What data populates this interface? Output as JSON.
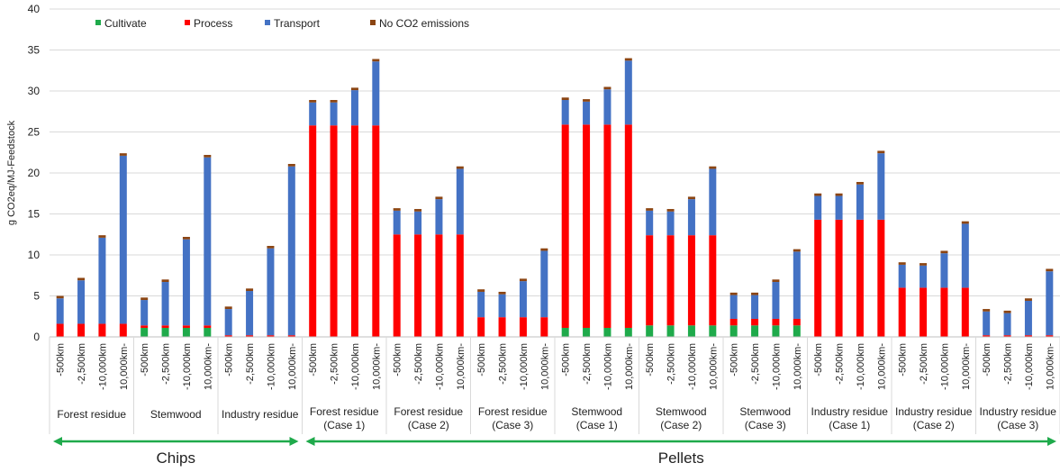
{
  "chart_data": {
    "type": "bar",
    "stacked": true,
    "ylabel": "g CO2eq/MJ-Feedstock",
    "ylim": [
      0,
      40
    ],
    "yticks": [
      0,
      5,
      10,
      15,
      20,
      25,
      30,
      35,
      40
    ],
    "grid": true,
    "legend_position": "top-left",
    "categories": [
      "-500km",
      "-2,500km",
      "-10,000km",
      "10,000km-"
    ],
    "groups": [
      {
        "label_line1": "Forest residue",
        "label_line2": ""
      },
      {
        "label_line1": "Stemwood",
        "label_line2": ""
      },
      {
        "label_line1": "Industry residue",
        "label_line2": ""
      },
      {
        "label_line1": "Forest residue",
        "label_line2": "(Case 1)"
      },
      {
        "label_line1": "Forest residue",
        "label_line2": "(Case 2)"
      },
      {
        "label_line1": "Forest residue",
        "label_line2": "(Case 3)"
      },
      {
        "label_line1": "Stemwood",
        "label_line2": "(Case 1)"
      },
      {
        "label_line1": "Stemwood",
        "label_line2": "(Case 2)"
      },
      {
        "label_line1": "Stemwood",
        "label_line2": "(Case 3)"
      },
      {
        "label_line1": "Industry residue",
        "label_line2": "(Case 1)"
      },
      {
        "label_line1": "Industry residue",
        "label_line2": "(Case 2)"
      },
      {
        "label_line1": "Industry residue",
        "label_line2": "(Case 3)"
      }
    ],
    "series": [
      {
        "name": "Cultivate",
        "color": "#1FAA4B",
        "values": [
          [
            0,
            0,
            0,
            0
          ],
          [
            1.1,
            1.1,
            1.1,
            1.1
          ],
          [
            0,
            0,
            0,
            0
          ],
          [
            0,
            0,
            0,
            0
          ],
          [
            0,
            0,
            0,
            0
          ],
          [
            0,
            0,
            0,
            0
          ],
          [
            1.1,
            1.1,
            1.1,
            1.1
          ],
          [
            1.4,
            1.4,
            1.4,
            1.4
          ],
          [
            1.4,
            1.4,
            1.4,
            1.4
          ],
          [
            0,
            0,
            0,
            0
          ],
          [
            0,
            0,
            0,
            0
          ],
          [
            0,
            0,
            0,
            0
          ]
        ]
      },
      {
        "name": "Process",
        "color": "#FF0000",
        "values": [
          [
            1.6,
            1.6,
            1.6,
            1.6
          ],
          [
            0.3,
            0.3,
            0.3,
            0.3
          ],
          [
            0.2,
            0.2,
            0.2,
            0.2
          ],
          [
            25.8,
            25.8,
            25.8,
            25.8
          ],
          [
            12.5,
            12.5,
            12.5,
            12.5
          ],
          [
            2.4,
            2.4,
            2.4,
            2.4
          ],
          [
            24.8,
            24.8,
            24.8,
            24.8
          ],
          [
            11.0,
            11.0,
            11.0,
            11.0
          ],
          [
            0.8,
            0.8,
            0.8,
            0.8
          ],
          [
            14.3,
            14.3,
            14.3,
            14.3
          ],
          [
            6.0,
            6.0,
            6.0,
            6.0
          ],
          [
            0.2,
            0.2,
            0.2,
            0.2
          ]
        ]
      },
      {
        "name": "Transport",
        "color": "#4472C4",
        "values": [
          [
            3.1,
            5.3,
            10.5,
            20.5
          ],
          [
            3.1,
            5.3,
            10.5,
            20.5
          ],
          [
            3.2,
            5.4,
            10.6,
            20.6
          ],
          [
            2.8,
            2.8,
            4.3,
            7.8
          ],
          [
            2.9,
            2.8,
            4.3,
            8.0
          ],
          [
            3.1,
            2.8,
            4.4,
            8.1
          ],
          [
            3.0,
            2.8,
            4.3,
            7.8
          ],
          [
            3.0,
            2.9,
            4.4,
            8.1
          ],
          [
            2.9,
            2.9,
            4.5,
            8.2
          ],
          [
            2.9,
            2.9,
            4.3,
            8.1
          ],
          [
            2.8,
            2.7,
            4.2,
            7.8
          ],
          [
            2.9,
            2.7,
            4.2,
            7.8
          ]
        ]
      },
      {
        "name": "No CO2 emissions",
        "color": "#8B4513",
        "values": [
          [
            0.3,
            0.3,
            0.3,
            0.3
          ],
          [
            0.3,
            0.3,
            0.3,
            0.3
          ],
          [
            0.3,
            0.3,
            0.3,
            0.3
          ],
          [
            0.3,
            0.3,
            0.3,
            0.3
          ],
          [
            0.3,
            0.3,
            0.3,
            0.3
          ],
          [
            0.3,
            0.3,
            0.3,
            0.3
          ],
          [
            0.3,
            0.3,
            0.3,
            0.3
          ],
          [
            0.3,
            0.3,
            0.3,
            0.3
          ],
          [
            0.3,
            0.3,
            0.3,
            0.3
          ],
          [
            0.3,
            0.3,
            0.3,
            0.3
          ],
          [
            0.3,
            0.3,
            0.3,
            0.3
          ],
          [
            0.3,
            0.3,
            0.3,
            0.3
          ]
        ]
      }
    ],
    "brackets": [
      {
        "label": "Chips",
        "from_group": 0,
        "to_group": 2
      },
      {
        "label": "Pellets",
        "from_group": 3,
        "to_group": 11
      }
    ],
    "bracket_color": "#1FAA4B"
  }
}
